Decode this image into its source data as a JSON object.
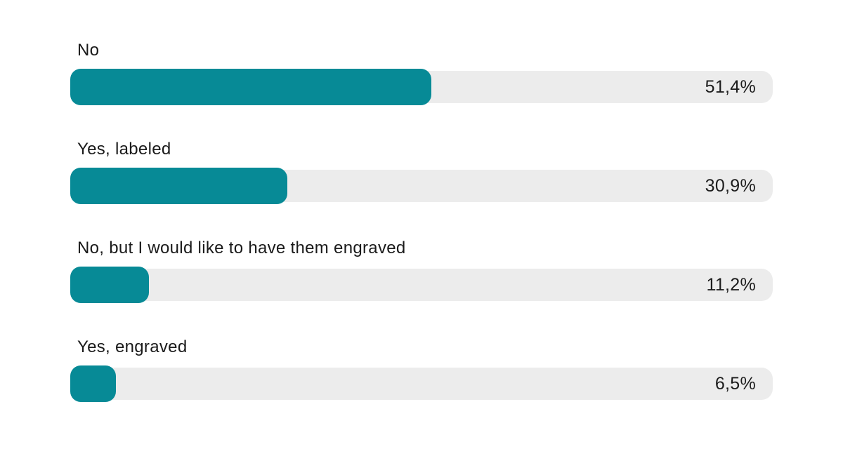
{
  "chart_data": {
    "type": "bar",
    "orientation": "horizontal",
    "categories": [
      "No",
      "Yes, labeled",
      "No, but I would like to have them engraved",
      "Yes, engraved"
    ],
    "values": [
      51.4,
      30.9,
      11.2,
      6.5
    ],
    "value_labels": [
      "51,4%",
      "30,9%",
      "11,2%",
      "6,5%"
    ],
    "xlim": [
      0,
      100
    ],
    "title": "",
    "xlabel": "",
    "ylabel": "",
    "legend": "none",
    "grid": false,
    "bar_color": "#078a96",
    "track_color": "#ececec",
    "label_color": "#1a1a1a",
    "value_color": "#1c1c1c",
    "background_color": "#ffffff"
  }
}
